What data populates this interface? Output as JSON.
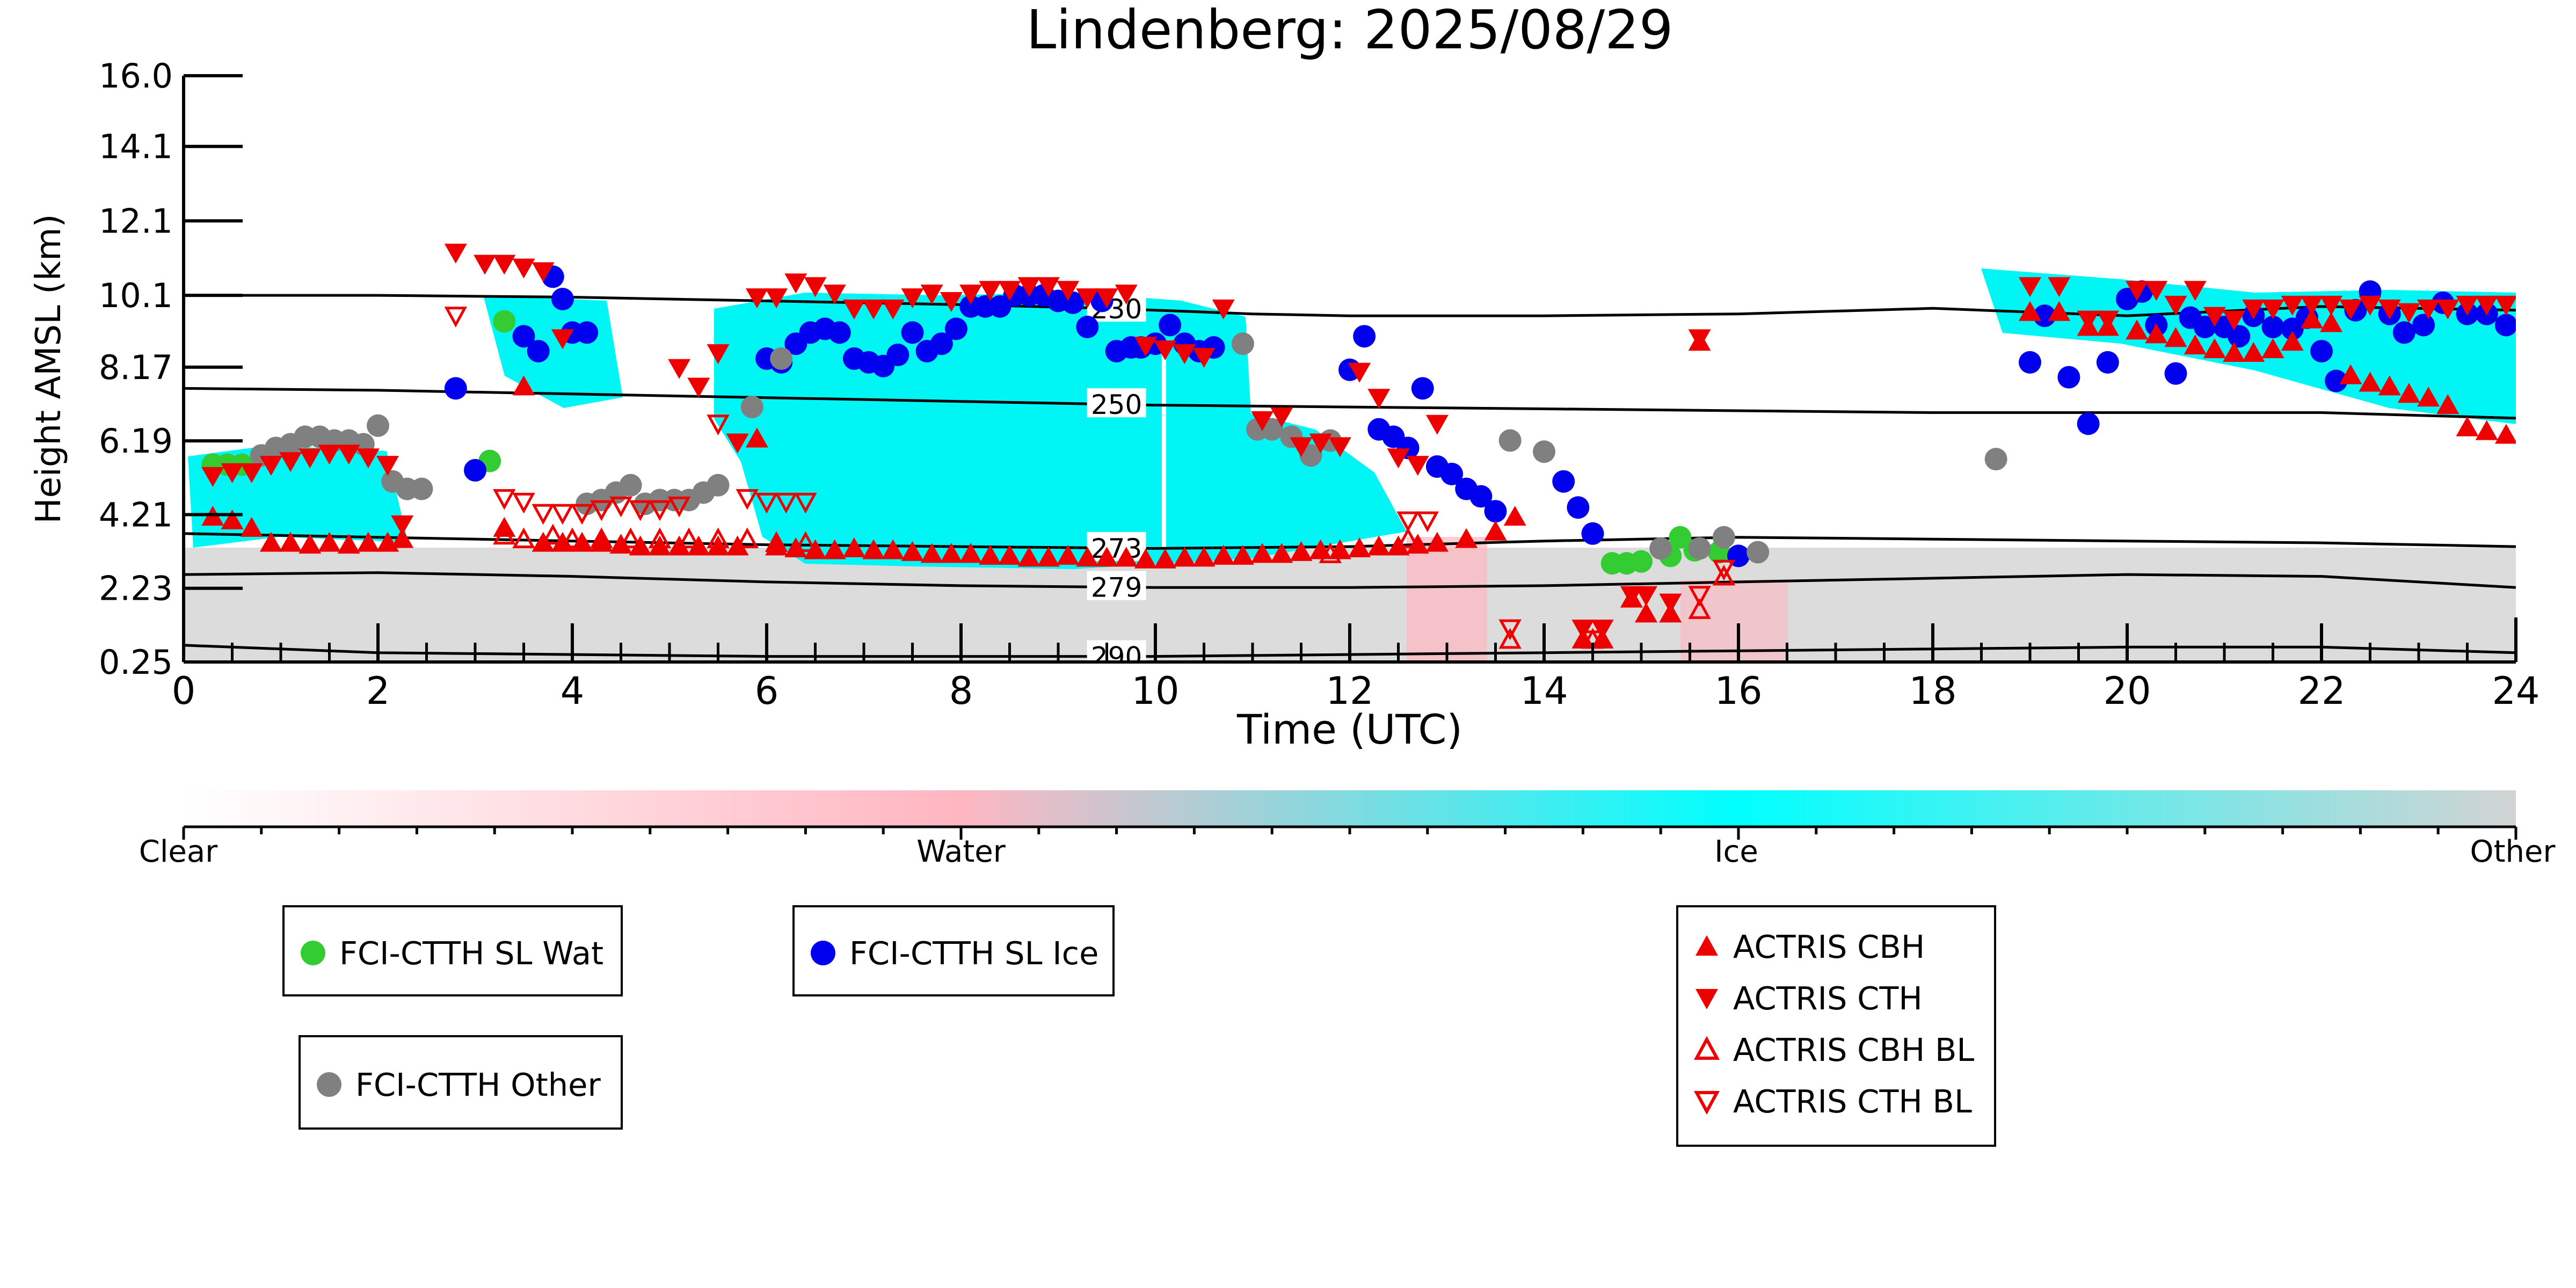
{
  "chart_data": {
    "type": "scatter",
    "title": "Lindenberg: 2025/08/29",
    "xlabel": "Time (UTC)",
    "ylabel": "Height AMSL (km)",
    "xlim": [
      0,
      24
    ],
    "ylim": [
      0.25,
      16.0
    ],
    "x_ticks": [
      "0",
      "2",
      "4",
      "6",
      "8",
      "10",
      "12",
      "14",
      "16",
      "18",
      "20",
      "22",
      "24"
    ],
    "y_ticks": [
      "0.25",
      "2.23",
      "4.21",
      "6.19",
      "8.17",
      "10.1",
      "12.1",
      "14.1",
      "16.0"
    ],
    "colorbar": {
      "labels": [
        "Clear",
        "Water",
        "Ice",
        "Other"
      ],
      "colors": [
        "#ffffff",
        "#ffb6c1",
        "#00ffff",
        "#d3d3d3"
      ]
    },
    "isotherms": [
      {
        "label": "230",
        "x": [
          0,
          2,
          4,
          6,
          8,
          9.5,
          11,
          12,
          14,
          16,
          18,
          20,
          22,
          24
        ],
        "y": [
          10.1,
          10.1,
          10.05,
          9.95,
          9.85,
          9.75,
          9.6,
          9.55,
          9.55,
          9.6,
          9.75,
          9.55,
          9.8,
          9.7
        ]
      },
      {
        "label": "250",
        "x": [
          0,
          2,
          4,
          6,
          8,
          10,
          12,
          14,
          16,
          18,
          20,
          22,
          24
        ],
        "y": [
          7.6,
          7.55,
          7.45,
          7.35,
          7.25,
          7.15,
          7.1,
          7.05,
          7.0,
          6.95,
          6.95,
          6.95,
          6.8
        ]
      },
      {
        "label": "273",
        "x": [
          0,
          2,
          4,
          6,
          8,
          10,
          12,
          14,
          16,
          18,
          20,
          22,
          24
        ],
        "y": [
          3.7,
          3.6,
          3.5,
          3.4,
          3.35,
          3.3,
          3.35,
          3.5,
          3.6,
          3.55,
          3.5,
          3.45,
          3.35
        ]
      },
      {
        "label": "279",
        "x": [
          0,
          2,
          4,
          6,
          8,
          10,
          12,
          14,
          16,
          18,
          20,
          22,
          24
        ],
        "y": [
          2.6,
          2.65,
          2.55,
          2.4,
          2.3,
          2.25,
          2.25,
          2.3,
          2.4,
          2.5,
          2.6,
          2.55,
          2.25
        ]
      },
      {
        "label": "290",
        "x": [
          0,
          2,
          4,
          6,
          8,
          10,
          12,
          14,
          16,
          18,
          20,
          22,
          24
        ],
        "y": [
          0.7,
          0.5,
          0.45,
          0.4,
          0.4,
          0.4,
          0.45,
          0.5,
          0.55,
          0.6,
          0.65,
          0.65,
          0.5
        ]
      }
    ],
    "series": [
      {
        "name": "FCI-CTTH SL Wat",
        "marker": "circle",
        "color": "#33cc33",
        "x": [
          0.3,
          0.45,
          0.6,
          3.15,
          3.3,
          14.7,
          14.85,
          15.0,
          15.3,
          15.4,
          15.55,
          15.8
        ],
        "y": [
          5.55,
          5.55,
          5.55,
          5.65,
          9.4,
          2.9,
          2.9,
          2.95,
          3.1,
          3.6,
          3.25,
          3.2
        ]
      },
      {
        "name": "FCI-CTTH SL Ice",
        "marker": "circle",
        "color": "#0000ee",
        "x": [
          2.8,
          3.0,
          3.5,
          3.65,
          3.8,
          3.9,
          4.0,
          4.15,
          6.0,
          6.15,
          6.3,
          6.45,
          6.6,
          6.75,
          6.9,
          7.05,
          7.2,
          7.35,
          7.5,
          7.65,
          7.8,
          7.95,
          8.1,
          8.25,
          8.4,
          8.55,
          8.7,
          8.85,
          9.0,
          9.15,
          9.3,
          9.45,
          9.6,
          9.75,
          9.85,
          10.0,
          10.15,
          10.3,
          10.45,
          10.6,
          12.0,
          12.15,
          12.3,
          12.45,
          12.6,
          12.75,
          12.9,
          13.05,
          13.2,
          13.35,
          13.5,
          14.2,
          14.35,
          14.5,
          16.0,
          19.0,
          19.15,
          19.4,
          19.6,
          19.8,
          20.0,
          20.15,
          20.3,
          20.5,
          20.65,
          20.8,
          21.0,
          21.15,
          21.3,
          21.5,
          21.7,
          21.85,
          22.0,
          22.15,
          22.35,
          22.5,
          22.7,
          22.85,
          23.05,
          23.25,
          23.5,
          23.7,
          23.9
        ],
        "y": [
          7.6,
          5.4,
          9.0,
          8.6,
          10.6,
          10.0,
          9.1,
          9.1,
          8.4,
          8.3,
          8.8,
          9.1,
          9.2,
          9.1,
          8.4,
          8.3,
          8.2,
          8.5,
          9.1,
          8.6,
          8.8,
          9.2,
          9.8,
          9.8,
          9.8,
          10.1,
          10.1,
          10.1,
          9.95,
          9.9,
          9.25,
          9.95,
          8.6,
          8.7,
          8.7,
          8.8,
          9.3,
          8.8,
          8.6,
          8.7,
          8.1,
          9.0,
          6.5,
          6.3,
          6.0,
          7.6,
          5.5,
          5.3,
          4.9,
          4.7,
          4.3,
          5.1,
          4.4,
          3.7,
          3.1,
          8.3,
          9.55,
          7.9,
          6.65,
          8.3,
          10.0,
          10.2,
          9.3,
          8.0,
          9.5,
          9.25,
          9.25,
          9.0,
          9.55,
          9.25,
          9.2,
          9.5,
          8.6,
          7.8,
          9.7,
          10.2,
          9.6,
          9.1,
          9.3,
          9.9,
          9.6,
          9.6,
          9.3
        ]
      },
      {
        "name": "FCI-CTTH Other",
        "marker": "circle",
        "color": "#808080",
        "x": [
          0.8,
          0.95,
          1.1,
          1.25,
          1.4,
          1.55,
          1.7,
          1.85,
          2.0,
          2.15,
          2.3,
          2.45,
          4.15,
          4.3,
          4.45,
          4.6,
          4.75,
          4.9,
          5.05,
          5.2,
          5.35,
          5.5,
          5.85,
          6.15,
          10.9,
          11.05,
          11.2,
          11.4,
          11.6,
          11.8,
          13.65,
          14.0,
          15.2,
          15.6,
          15.85,
          16.2,
          18.65
        ],
        "y": [
          5.8,
          6.0,
          6.1,
          6.3,
          6.3,
          6.2,
          6.2,
          6.1,
          6.6,
          5.1,
          4.9,
          4.9,
          4.5,
          4.6,
          4.8,
          5.0,
          4.5,
          4.6,
          4.6,
          4.6,
          4.8,
          5.0,
          7.1,
          8.4,
          8.8,
          6.5,
          6.5,
          6.3,
          5.8,
          6.2,
          6.2,
          5.9,
          3.3,
          3.3,
          3.6,
          3.2,
          5.7
        ]
      },
      {
        "name": "ACTRIS CBH",
        "marker": "triangle-up",
        "color": "#ee0000",
        "x": [
          0.3,
          0.5,
          0.7,
          0.9,
          1.1,
          1.3,
          1.5,
          1.7,
          1.9,
          2.1,
          2.25,
          3.3,
          3.5,
          3.7,
          3.9,
          4.1,
          4.3,
          4.5,
          4.7,
          4.9,
          5.1,
          5.3,
          5.5,
          5.7,
          5.9,
          6.1,
          6.3,
          6.5,
          6.7,
          6.9,
          7.1,
          7.3,
          7.5,
          7.7,
          7.9,
          8.1,
          8.3,
          8.5,
          8.7,
          8.9,
          9.1,
          9.3,
          9.5,
          9.7,
          9.9,
          10.1,
          10.3,
          10.5,
          10.7,
          10.9,
          11.1,
          11.3,
          11.5,
          11.7,
          11.9,
          12.1,
          12.3,
          12.5,
          12.7,
          12.9,
          13.2,
          13.5,
          13.7,
          14.4,
          14.6,
          14.9,
          15.05,
          15.3,
          15.6,
          19.0,
          19.3,
          19.6,
          19.8,
          20.1,
          20.3,
          20.5,
          20.7,
          20.9,
          21.1,
          21.3,
          21.5,
          21.7,
          21.9,
          22.1,
          22.3,
          22.5,
          22.7,
          22.9,
          23.1,
          23.3,
          23.5,
          23.7,
          23.9
        ],
        "y": [
          4.1,
          4.0,
          3.8,
          3.4,
          3.4,
          3.35,
          3.4,
          3.35,
          3.4,
          3.4,
          3.5,
          3.8,
          7.6,
          3.4,
          3.4,
          3.4,
          3.4,
          3.35,
          3.3,
          3.3,
          3.3,
          3.3,
          3.3,
          3.3,
          6.2,
          3.3,
          3.25,
          3.2,
          3.2,
          3.25,
          3.2,
          3.2,
          3.15,
          3.1,
          3.1,
          3.1,
          3.05,
          3.05,
          3.0,
          3.0,
          3.05,
          3.0,
          3.0,
          3.0,
          2.95,
          2.95,
          3.0,
          3.0,
          3.05,
          3.05,
          3.1,
          3.1,
          3.15,
          3.2,
          3.2,
          3.25,
          3.3,
          3.3,
          3.35,
          3.4,
          3.5,
          3.7,
          4.1,
          0.8,
          0.8,
          1.9,
          1.5,
          1.5,
          8.8,
          9.6,
          9.6,
          9.2,
          9.2,
          9.1,
          9.0,
          8.9,
          8.7,
          8.6,
          8.5,
          8.5,
          8.6,
          8.8,
          9.4,
          9.3,
          7.9,
          7.7,
          7.6,
          7.4,
          7.3,
          7.1,
          6.5,
          6.4,
          6.3
        ]
      },
      {
        "name": "ACTRIS CTH",
        "marker": "triangle-down",
        "color": "#ee0000",
        "x": [
          0.3,
          0.5,
          0.7,
          0.9,
          1.1,
          1.3,
          1.5,
          1.7,
          1.9,
          2.1,
          2.25,
          2.8,
          3.1,
          3.3,
          3.5,
          3.7,
          3.9,
          5.1,
          5.3,
          5.5,
          5.7,
          5.9,
          6.1,
          6.3,
          6.5,
          6.7,
          6.9,
          7.1,
          7.3,
          7.5,
          7.7,
          7.9,
          8.1,
          8.3,
          8.5,
          8.7,
          8.9,
          9.1,
          9.3,
          9.5,
          9.7,
          9.9,
          10.1,
          10.3,
          10.5,
          10.7,
          11.1,
          11.3,
          11.5,
          11.7,
          11.9,
          12.1,
          12.3,
          12.5,
          12.7,
          12.9,
          14.4,
          14.6,
          14.9,
          15.05,
          15.3,
          15.6,
          19.0,
          19.3,
          19.6,
          19.8,
          20.1,
          20.3,
          20.5,
          20.7,
          20.9,
          21.1,
          21.3,
          21.5,
          21.7,
          21.9,
          22.1,
          22.3,
          22.5,
          22.7,
          22.9,
          23.1,
          23.3,
          23.5,
          23.7,
          23.9
        ],
        "y": [
          5.3,
          5.4,
          5.4,
          5.6,
          5.7,
          5.8,
          5.9,
          5.9,
          5.8,
          5.6,
          4.0,
          11.3,
          11.0,
          11.0,
          10.9,
          10.8,
          9.0,
          8.2,
          7.7,
          8.6,
          6.2,
          10.1,
          10.1,
          10.5,
          10.4,
          10.2,
          9.8,
          9.8,
          9.8,
          10.1,
          10.2,
          10.0,
          10.2,
          10.3,
          10.3,
          10.4,
          10.4,
          10.3,
          10.1,
          10.1,
          10.2,
          8.8,
          8.7,
          8.6,
          8.5,
          9.8,
          6.8,
          6.9,
          6.1,
          6.2,
          6.1,
          8.1,
          7.4,
          5.8,
          5.6,
          6.7,
          1.2,
          1.2,
          2.1,
          2.1,
          1.9,
          9.0,
          10.4,
          10.4,
          9.5,
          9.5,
          10.3,
          10.3,
          9.9,
          10.3,
          9.6,
          9.5,
          9.8,
          9.8,
          9.9,
          9.9,
          9.9,
          9.8,
          9.9,
          9.8,
          9.7,
          9.8,
          9.8,
          9.9,
          9.9,
          9.9
        ]
      },
      {
        "name": "ACTRIS CBH BL",
        "marker": "triangle-up-open",
        "color": "#ee0000",
        "x": [
          3.3,
          3.5,
          3.8,
          4.0,
          4.3,
          4.6,
          4.9,
          5.2,
          5.5,
          5.8,
          6.1,
          6.4,
          11.8,
          12.6,
          13.65,
          14.5,
          15.6,
          15.85
        ],
        "y": [
          3.6,
          3.5,
          3.6,
          3.5,
          3.5,
          3.5,
          3.5,
          3.5,
          3.5,
          3.5,
          3.4,
          3.4,
          3.1,
          3.5,
          0.8,
          0.8,
          1.6,
          2.5
        ]
      },
      {
        "name": "ACTRIS CTH BL",
        "marker": "triangle-down-open",
        "color": "#ee0000",
        "x": [
          2.8,
          3.3,
          3.5,
          3.7,
          3.9,
          4.1,
          4.3,
          4.5,
          4.7,
          4.9,
          5.1,
          5.5,
          5.8,
          6.0,
          6.2,
          6.4,
          12.6,
          12.8,
          13.65,
          14.5,
          15.6,
          15.85
        ],
        "y": [
          9.6,
          4.7,
          4.6,
          4.3,
          4.3,
          4.3,
          4.4,
          4.5,
          4.4,
          4.4,
          4.5,
          6.7,
          4.7,
          4.6,
          4.6,
          4.6,
          4.1,
          4.1,
          1.2,
          0.9,
          2.1,
          2.8
        ]
      }
    ]
  }
}
